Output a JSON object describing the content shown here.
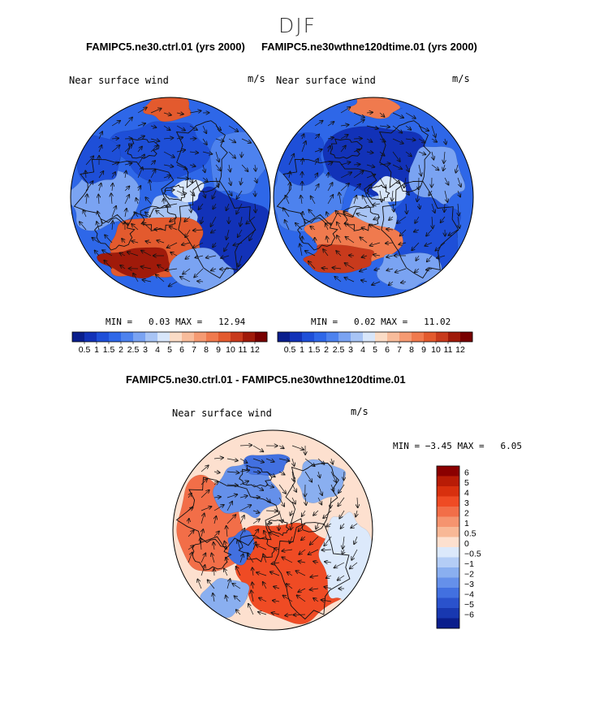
{
  "page_title": "DJF",
  "panels": [
    {
      "title": "FAMIPC5.ne30.ctrl.01 (yrs 2000)",
      "variable": "Near surface wind",
      "units": "m/s",
      "stats": {
        "min_label": "MIN =",
        "min": "0.03",
        "max_label": "MAX =",
        "max": "12.94"
      }
    },
    {
      "title": "FAMIPC5.ne30wthne120dtime.01 (yrs 2000)",
      "variable": "Near surface wind",
      "units": "m/s",
      "stats": {
        "min_label": "MIN =",
        "min": "0.02",
        "max_label": "MAX =",
        "max": "11.02"
      }
    },
    {
      "title": "FAMIPC5.ne30.ctrl.01 - FAMIPC5.ne30wthne120dtime.01",
      "variable": "Near surface wind",
      "units": "m/s",
      "stats": {
        "min_label": "MIN =",
        "min": "−3.45",
        "max_label": "MAX =",
        "max": "6.05"
      }
    }
  ],
  "chart_data": [
    {
      "type": "heatmap",
      "projection": "north-polar-stereographic",
      "title": "FAMIPC5.ne30.ctrl.01 (yrs 2000)",
      "field": "Near surface wind",
      "units": "m/s",
      "min": 0.03,
      "max": 12.94,
      "contour_levels": [
        0.5,
        1,
        1.5,
        2,
        2.5,
        3,
        4,
        5,
        6,
        7,
        8,
        9,
        10,
        11,
        12
      ],
      "colorbar_labels": [
        "0.5",
        "1",
        "1.5",
        "2",
        "2.5",
        "3",
        "4",
        "5",
        "6",
        "7",
        "8",
        "9",
        "10",
        "11",
        "12"
      ],
      "colorbar_colors": [
        "#0a1e8c",
        "#1232b8",
        "#1e4fd8",
        "#2e67e8",
        "#4d82ee",
        "#7aa3f2",
        "#a8c4f5",
        "#d8e6fa",
        "#fbdcc6",
        "#f8bc9b",
        "#f59a72",
        "#f07a4e",
        "#e35a2e",
        "#c83a1c",
        "#a01a0a",
        "#780000"
      ]
    },
    {
      "type": "heatmap",
      "projection": "north-polar-stereographic",
      "title": "FAMIPC5.ne30wthne120dtime.01 (yrs 2000)",
      "field": "Near surface wind",
      "units": "m/s",
      "min": 0.02,
      "max": 11.02,
      "contour_levels": [
        0.5,
        1,
        1.5,
        2,
        2.5,
        3,
        4,
        5,
        6,
        7,
        8,
        9,
        10,
        11,
        12
      ],
      "colorbar_labels": [
        "0.5",
        "1",
        "1.5",
        "2",
        "2.5",
        "3",
        "4",
        "5",
        "6",
        "7",
        "8",
        "9",
        "10",
        "11",
        "12"
      ],
      "colorbar_colors": [
        "#0a1e8c",
        "#1232b8",
        "#1e4fd8",
        "#2e67e8",
        "#4d82ee",
        "#7aa3f2",
        "#a8c4f5",
        "#d8e6fa",
        "#fbdcc6",
        "#f8bc9b",
        "#f59a72",
        "#f07a4e",
        "#e35a2e",
        "#c83a1c",
        "#a01a0a",
        "#780000"
      ]
    },
    {
      "type": "heatmap",
      "projection": "north-polar-stereographic",
      "title": "FAMIPC5.ne30.ctrl.01 - FAMIPC5.ne30wthne120dtime.01",
      "field": "Near surface wind",
      "units": "m/s",
      "min": -3.45,
      "max": 6.05,
      "contour_levels": [
        -6,
        -5,
        -4,
        -3,
        -2,
        -1,
        -0.5,
        0,
        0.5,
        1,
        2,
        3,
        4,
        5,
        6
      ],
      "colorbar_labels": [
        "6",
        "5",
        "4",
        "3",
        "2",
        "1",
        "0.5",
        "0",
        "−0.5",
        "−1",
        "−2",
        "−3",
        "−4",
        "−5",
        "−6"
      ],
      "colorbar_colors": [
        "#8b0000",
        "#b81c06",
        "#d8300e",
        "#ef4b24",
        "#f26e48",
        "#f5946f",
        "#f8b896",
        "#fde0cf",
        "#dce9fb",
        "#b4cdf6",
        "#8aaff0",
        "#6590ea",
        "#4270e0",
        "#2a52cc",
        "#1838b0",
        "#0a1e8c"
      ]
    }
  ]
}
